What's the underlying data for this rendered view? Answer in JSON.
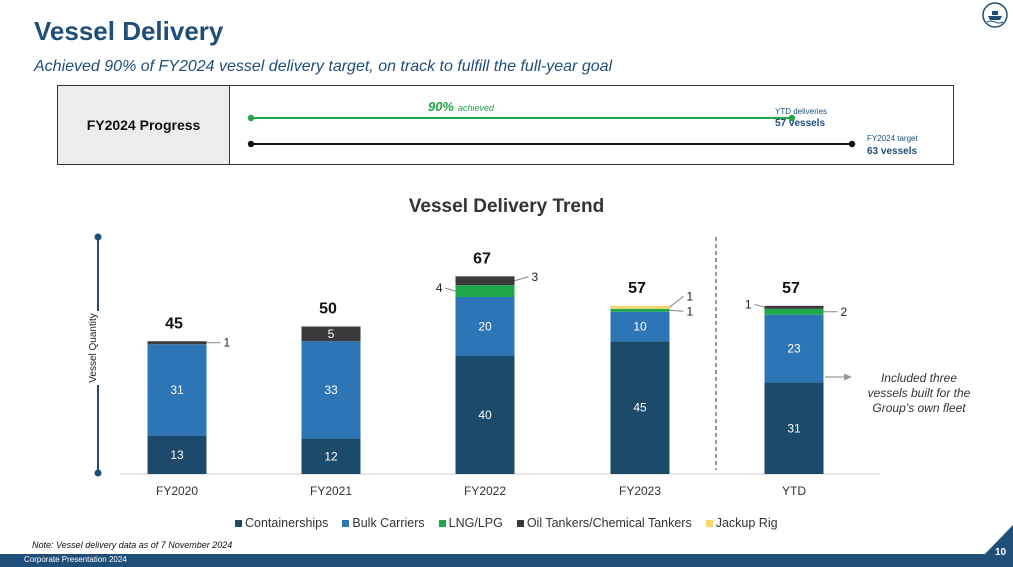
{
  "header": {
    "title": "Vessel Delivery",
    "subtitle": "Achieved 90% of FY2024 vessel delivery target, on track to fulfill the full-year goal",
    "logo_icon": "ship-emblem-icon"
  },
  "progress": {
    "label": "FY2024 Progress",
    "achieved_pct_text": "90%",
    "achieved_word": "achieved",
    "achieved_fraction": 0.9,
    "ytd_label": "YTD deliveries",
    "ytd_value": "57 vessels",
    "target_label": "FY2024 target",
    "target_value": "63 vessels",
    "colors": {
      "ytd_line": "#21a548",
      "target_line": "#111111",
      "text": "#1f4e79"
    }
  },
  "chart_data": {
    "type": "bar",
    "stacked": true,
    "title": "Vessel Delivery Trend",
    "ylabel": "Vessel Quantity",
    "xlabel": "",
    "categories": [
      "FY2020",
      "FY2021",
      "FY2022",
      "FY2023",
      "YTD"
    ],
    "totals": [
      45,
      50,
      67,
      57,
      57
    ],
    "series": [
      {
        "name": "Containerships",
        "color": "#1b4a6b",
        "values": [
          13,
          12,
          40,
          45,
          31
        ]
      },
      {
        "name": "Bulk Carriers",
        "color": "#2e75b6",
        "values": [
          31,
          33,
          20,
          10,
          23
        ]
      },
      {
        "name": "LNG/LPG",
        "color": "#1ea84b",
        "values": [
          0,
          0,
          4,
          1,
          2
        ]
      },
      {
        "name": "Oil Tankers/Chemical Tankers",
        "color": "#3a3a3a",
        "values": [
          1,
          5,
          3,
          0,
          1
        ]
      },
      {
        "name": "Jackup Rig",
        "color": "#f5d76e",
        "values": [
          0,
          0,
          0,
          1,
          0
        ]
      }
    ],
    "annotation": "Included three vessels built for the Group’s own fleet"
  },
  "note": "Note: Vessel delivery data as of 7 November 2024",
  "footer": {
    "text": "Corporate Presentation 2024",
    "page": "10"
  }
}
